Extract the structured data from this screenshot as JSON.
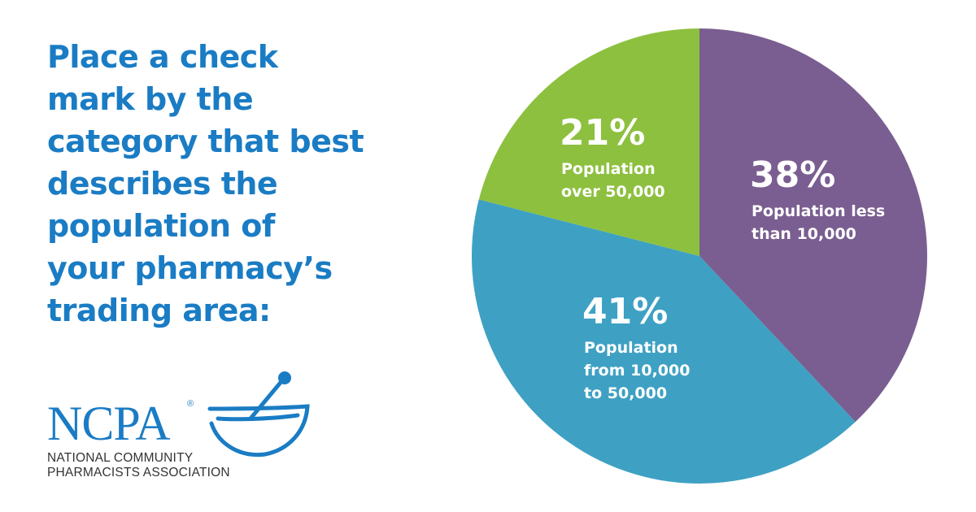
{
  "headline": {
    "lines": [
      "Place a check",
      "mark by the",
      "category that best",
      "describes the",
      "population of",
      "your pharmacy’s",
      "trading area:"
    ]
  },
  "logo": {
    "wordmark": "NCPA",
    "registered": "®",
    "line1": "NATIONAL COMMUNITY",
    "line2": "PHARMACISTS ASSOCIATION",
    "color": "#1a7cc4"
  },
  "chart_data": {
    "type": "pie",
    "title": "Place a check mark by the category that best describes the population of your pharmacy’s trading area:",
    "slices": [
      {
        "value": 38,
        "value_label": "38%",
        "label_lines": [
          "Population less",
          "than 10,000"
        ],
        "color": "#7a5e91"
      },
      {
        "value": 41,
        "value_label": "41%",
        "label_lines": [
          "Population",
          "from 10,000",
          "to 50,000"
        ],
        "color": "#3ea1c3"
      },
      {
        "value": 21,
        "value_label": "21%",
        "label_lines": [
          "Population",
          "over 50,000"
        ],
        "color": "#8dc03f"
      }
    ]
  }
}
